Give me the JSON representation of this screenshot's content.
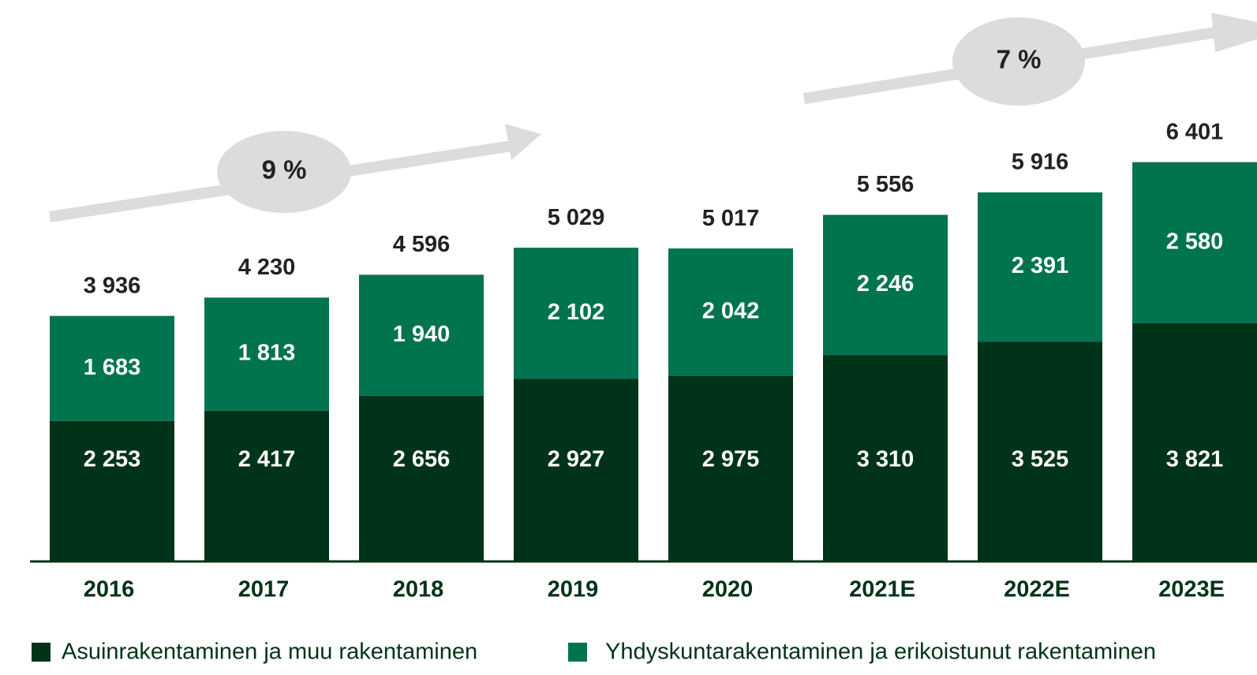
{
  "chart_data": {
    "type": "stacked_bar",
    "categories": [
      "2016",
      "2017",
      "2018",
      "2019",
      "2020",
      "2021E",
      "2022E",
      "2023E"
    ],
    "series": [
      {
        "name": "Asuinrakentaminen ja muu rakentaminen",
        "color": "#013318",
        "values": [
          2253,
          2417,
          2656,
          2927,
          2975,
          3310,
          3525,
          3821
        ],
        "value_labels": [
          "2 253",
          "2 417",
          "2 656",
          "2 927",
          "2 975",
          "3 310",
          "3 525",
          "3 821"
        ]
      },
      {
        "name": "Yhdyskuntarakentaminen ja erikoistunut rakentaminen",
        "color": "#00734f",
        "values": [
          1683,
          1813,
          1940,
          2102,
          2042,
          2246,
          2391,
          2580
        ],
        "value_labels": [
          "1 683",
          "1 813",
          "1 940",
          "2 102",
          "2 042",
          "2 246",
          "2 391",
          "2 580"
        ]
      }
    ],
    "totals": [
      3936,
      4230,
      4596,
      5029,
      5017,
      5556,
      5916,
      6401
    ],
    "total_labels": [
      "3 936",
      "4 230",
      "4 596",
      "5 029",
      "5 017",
      "5 556",
      "5 916",
      "6 401"
    ],
    "annotations": [
      "9 %",
      "7 %"
    ],
    "ylim": [
      0,
      9000
    ]
  }
}
